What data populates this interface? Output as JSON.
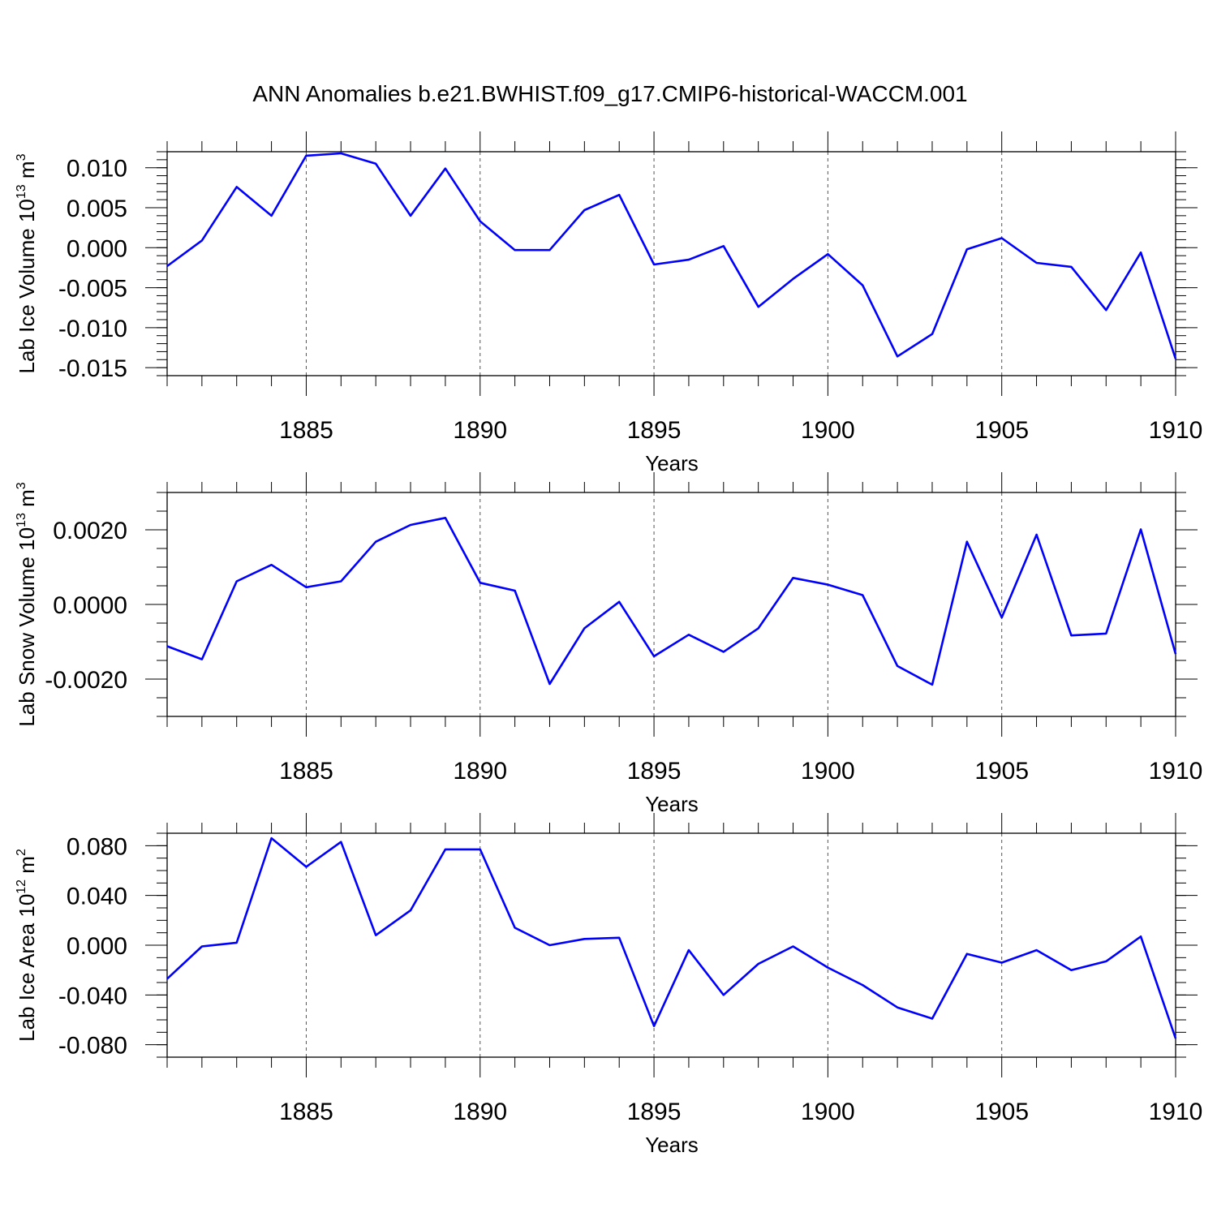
{
  "title": "ANN Anomalies b.e21.BWHIST.f09_g17.CMIP6-historical-WACCM.001",
  "line_color": "#0000ff",
  "chart_data": [
    {
      "type": "line",
      "ylabel_main": "Lab Ice Volume 10",
      "ylabel_exp": "13",
      "ylabel_unit": " m",
      "ylabel_unit_exp": "3",
      "xlabel": "Years",
      "xlim": [
        1881,
        1910
      ],
      "ylim": [
        -0.016,
        0.012
      ],
      "x_ticks": [
        "1885",
        "1890",
        "1895",
        "1900",
        "1905",
        "1910"
      ],
      "y_ticks": [
        {
          "v": 0.01,
          "label": "0.010"
        },
        {
          "v": 0.005,
          "label": "0.005"
        },
        {
          "v": 0.0,
          "label": "0.000"
        },
        {
          "v": -0.005,
          "label": "-0.005"
        },
        {
          "v": -0.01,
          "label": "-0.010"
        },
        {
          "v": -0.015,
          "label": "-0.015"
        }
      ],
      "y_minor": 0.001,
      "x": [
        1881,
        1882,
        1883,
        1884,
        1885,
        1886,
        1887,
        1888,
        1889,
        1890,
        1891,
        1892,
        1893,
        1894,
        1895,
        1896,
        1897,
        1898,
        1899,
        1900,
        1901,
        1902,
        1903,
        1904,
        1905,
        1906,
        1907,
        1908,
        1909,
        1910
      ],
      "values": [
        -0.0023,
        0.0009,
        0.0076,
        0.004,
        0.0115,
        0.0118,
        0.0105,
        0.004,
        0.0099,
        0.0033,
        -0.0003,
        -0.0003,
        0.0047,
        0.0066,
        -0.0021,
        -0.0015,
        0.0002,
        -0.0074,
        -0.0039,
        -0.0008,
        -0.0047,
        -0.0136,
        -0.0108,
        -0.0002,
        0.0012,
        -0.0019,
        -0.0024,
        -0.0078,
        -0.0006,
        -0.0139
      ]
    },
    {
      "type": "line",
      "ylabel_main": "Lab Snow Volume 10",
      "ylabel_exp": "13",
      "ylabel_unit": " m",
      "ylabel_unit_exp": "3",
      "xlabel": "Years",
      "xlim": [
        1881,
        1910
      ],
      "ylim": [
        -0.003,
        0.003
      ],
      "x_ticks": [
        "1885",
        "1890",
        "1895",
        "1900",
        "1905",
        "1910"
      ],
      "y_ticks": [
        {
          "v": 0.002,
          "label": "0.0020"
        },
        {
          "v": 0.0,
          "label": "0.0000"
        },
        {
          "v": -0.002,
          "label": "-0.0020"
        }
      ],
      "y_minor": 0.0005,
      "x": [
        1881,
        1882,
        1883,
        1884,
        1885,
        1886,
        1887,
        1888,
        1889,
        1890,
        1891,
        1892,
        1893,
        1894,
        1895,
        1896,
        1897,
        1898,
        1899,
        1900,
        1901,
        1902,
        1903,
        1904,
        1905,
        1906,
        1907,
        1908,
        1909,
        1910
      ],
      "values": [
        -0.00112,
        -0.00147,
        0.00062,
        0.00106,
        0.00046,
        0.00062,
        0.00168,
        0.00213,
        0.00232,
        0.00058,
        0.00037,
        -0.00213,
        -0.00064,
        7e-05,
        -0.00139,
        -0.00081,
        -0.00127,
        -0.00064,
        0.00071,
        0.00053,
        0.00025,
        -0.00165,
        -0.00215,
        0.00168,
        -0.00035,
        0.00187,
        -0.00083,
        -0.00078,
        0.00201,
        -0.00133
      ]
    },
    {
      "type": "line",
      "ylabel_main": "Lab Ice Area 10",
      "ylabel_exp": "12",
      "ylabel_unit": " m",
      "ylabel_unit_exp": "2",
      "xlabel": "Years",
      "xlim": [
        1881,
        1910
      ],
      "ylim": [
        -0.09,
        0.09
      ],
      "x_ticks": [
        "1885",
        "1890",
        "1895",
        "1900",
        "1905",
        "1910"
      ],
      "y_ticks": [
        {
          "v": 0.08,
          "label": "0.080"
        },
        {
          "v": 0.04,
          "label": "0.040"
        },
        {
          "v": 0.0,
          "label": "0.000"
        },
        {
          "v": -0.04,
          "label": "-0.040"
        },
        {
          "v": -0.08,
          "label": "-0.080"
        }
      ],
      "y_minor": 0.01,
      "x": [
        1881,
        1882,
        1883,
        1884,
        1885,
        1886,
        1887,
        1888,
        1889,
        1890,
        1891,
        1892,
        1893,
        1894,
        1895,
        1896,
        1897,
        1898,
        1899,
        1900,
        1901,
        1902,
        1903,
        1904,
        1905,
        1906,
        1907,
        1908,
        1909,
        1910
      ],
      "values": [
        -0.027,
        -0.001,
        0.002,
        0.086,
        0.063,
        0.083,
        0.008,
        0.028,
        0.077,
        0.077,
        0.014,
        0.0,
        0.005,
        0.006,
        -0.065,
        -0.004,
        -0.04,
        -0.015,
        -0.001,
        -0.018,
        -0.032,
        -0.05,
        -0.059,
        -0.007,
        -0.014,
        -0.004,
        -0.02,
        -0.013,
        0.007,
        -0.075
      ]
    }
  ]
}
